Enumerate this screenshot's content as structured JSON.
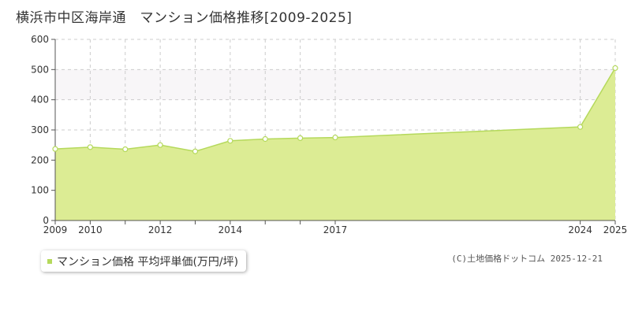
{
  "title": "横浜市中区海岸通　マンション価格推移[2009-2025]",
  "legend_label": "マンション価格 平均坪単価(万円/坪)",
  "copyright": "(C)土地価格ドットコム 2025-12-21",
  "colors": {
    "fill": "#dcec94",
    "line": "#b5d95c",
    "band": "#f8f6f8",
    "grid": "#cccccc",
    "axis": "#555555",
    "marker": "#b5d95c"
  },
  "chart_data": {
    "type": "area",
    "title": "横浜市中区海岸通　マンション価格推移[2009-2025]",
    "xlabel": "",
    "ylabel": "",
    "x_ticks": [
      2009,
      2010,
      2012,
      2014,
      2017,
      2024,
      2025
    ],
    "y_ticks": [
      0,
      100,
      200,
      300,
      400,
      500,
      600
    ],
    "ylim": [
      0,
      600
    ],
    "grid": true,
    "legend_position": "bottom-left",
    "series": [
      {
        "name": "マンション価格 平均坪単価(万円/坪)",
        "points": [
          {
            "x": 2009,
            "y": 237
          },
          {
            "x": 2010,
            "y": 243
          },
          {
            "x": 2011,
            "y": 236
          },
          {
            "x": 2012,
            "y": 250
          },
          {
            "x": 2013,
            "y": 229
          },
          {
            "x": 2014,
            "y": 264
          },
          {
            "x": 2015,
            "y": 270
          },
          {
            "x": 2016,
            "y": 273
          },
          {
            "x": 2017,
            "y": 275
          },
          {
            "x": 2024,
            "y": 310
          },
          {
            "x": 2025,
            "y": 505
          }
        ]
      }
    ]
  }
}
